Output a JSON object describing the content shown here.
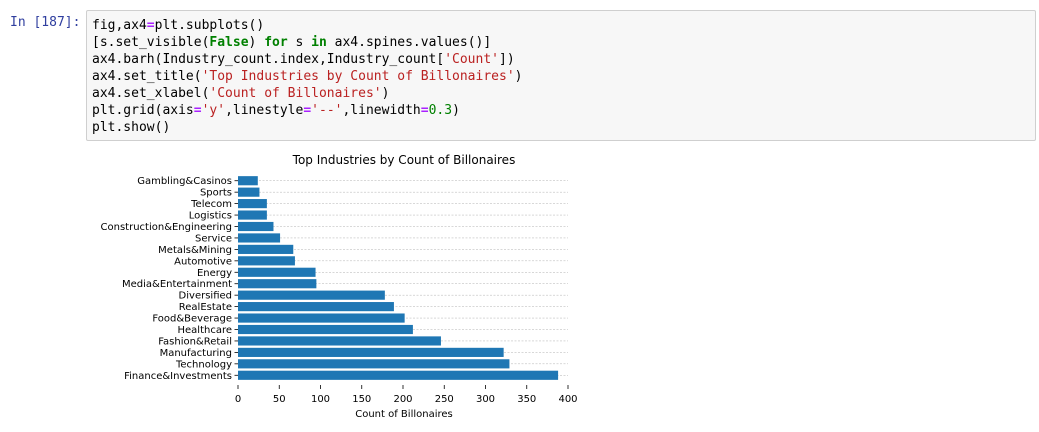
{
  "cell": {
    "prompt": "In [187]:",
    "code_lines": [
      [
        {
          "t": "fig,ax4",
          "c": ""
        },
        {
          "t": "=",
          "c": "op"
        },
        {
          "t": "plt.subplots()",
          "c": ""
        }
      ],
      [
        {
          "t": "[s.set_visible(",
          "c": ""
        },
        {
          "t": "False",
          "c": "kw"
        },
        {
          "t": ") ",
          "c": ""
        },
        {
          "t": "for",
          "c": "kw"
        },
        {
          "t": " s ",
          "c": ""
        },
        {
          "t": "in",
          "c": "kw"
        },
        {
          "t": " ax4.spines.values()]",
          "c": ""
        }
      ],
      [
        {
          "t": "ax4.barh(Industry_count.index,Industry_count[",
          "c": ""
        },
        {
          "t": "'Count'",
          "c": "str"
        },
        {
          "t": "])",
          "c": ""
        }
      ],
      [
        {
          "t": "ax4.set_title(",
          "c": ""
        },
        {
          "t": "'Top Industries by Count of Billonaires'",
          "c": "str"
        },
        {
          "t": ")",
          "c": ""
        }
      ],
      [
        {
          "t": "ax4.set_xlabel(",
          "c": ""
        },
        {
          "t": "'Count of Billonaires'",
          "c": "str"
        },
        {
          "t": ")",
          "c": ""
        }
      ],
      [
        {
          "t": "plt.grid(axis",
          "c": ""
        },
        {
          "t": "=",
          "c": "op"
        },
        {
          "t": "'y'",
          "c": "str"
        },
        {
          "t": ",linestyle",
          "c": ""
        },
        {
          "t": "=",
          "c": "op"
        },
        {
          "t": "'--'",
          "c": "str"
        },
        {
          "t": ",linewidth",
          "c": ""
        },
        {
          "t": "=",
          "c": "op"
        },
        {
          "t": "0.3",
          "c": "num"
        },
        {
          "t": ")",
          "c": ""
        }
      ],
      [
        {
          "t": "plt.show()",
          "c": ""
        }
      ]
    ]
  },
  "chart_data": {
    "type": "bar",
    "orientation": "horizontal",
    "title": "Top Industries by Count of Billonaires",
    "xlabel": "Count of Billonaires",
    "ylabel": "",
    "xlim": [
      0,
      400
    ],
    "xticks": [
      0,
      50,
      100,
      150,
      200,
      250,
      300,
      350,
      400
    ],
    "grid": {
      "axis": "y",
      "linestyle": "--"
    },
    "bar_color": "#1f77b4",
    "categories": [
      "Finance&Investments",
      "Technology",
      "Manufacturing",
      "Fashion&Retail",
      "Healthcare",
      "Food&Beverage",
      "RealEstate",
      "Diversified",
      "Media&Entertainment",
      "Energy",
      "Automotive",
      "Metals&Mining",
      "Service",
      "Construction&Engineering",
      "Logistics",
      "Telecom",
      "Sports",
      "Gambling&Casinos"
    ],
    "values": [
      388,
      329,
      322,
      246,
      212,
      202,
      189,
      178,
      95,
      94,
      69,
      67,
      51,
      43,
      35,
      35,
      26,
      24
    ]
  }
}
